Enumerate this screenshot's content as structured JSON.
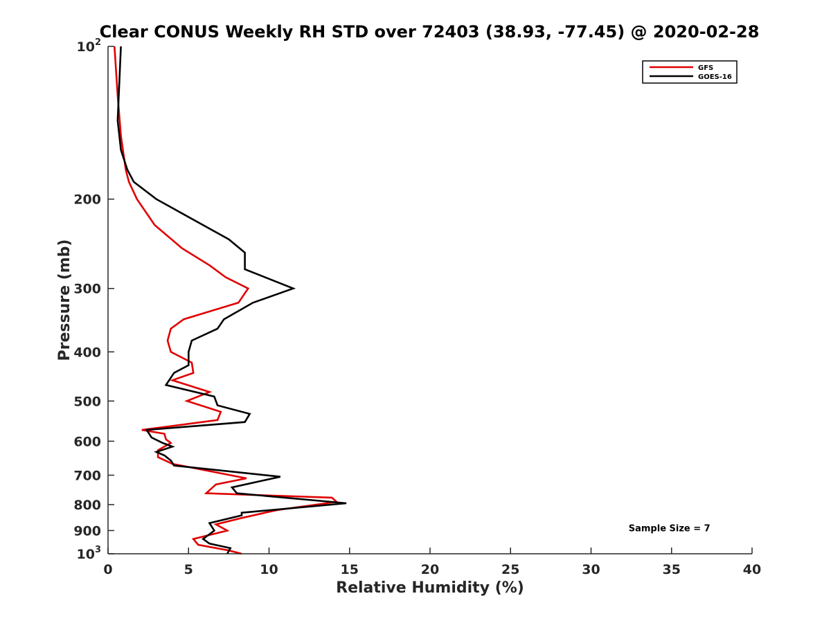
{
  "chart_data": {
    "type": "line",
    "title": "Clear CONUS Weekly RH STD over 72403 (38.93, -77.45) @ 2020-02-28",
    "xlabel": "Relative Humidity (%)",
    "ylabel": "Pressure (mb)",
    "xlim": [
      0,
      40
    ],
    "ylim": [
      100,
      1000
    ],
    "yscale": "log",
    "y_reversed": true,
    "grid": false,
    "x_ticks": [
      0,
      5,
      10,
      15,
      20,
      25,
      30,
      35,
      40
    ],
    "x_tick_labels": [
      "0",
      "5",
      "10",
      "15",
      "20",
      "25",
      "30",
      "35",
      "40"
    ],
    "y_ticks": [
      100,
      200,
      300,
      400,
      500,
      600,
      700,
      800,
      900,
      1000
    ],
    "y_tick_labels": [
      {
        "base": "10",
        "exp": "2"
      },
      {
        "base": "200",
        "exp": ""
      },
      {
        "base": "300",
        "exp": ""
      },
      {
        "base": "400",
        "exp": ""
      },
      {
        "base": "500",
        "exp": ""
      },
      {
        "base": "600",
        "exp": ""
      },
      {
        "base": "700",
        "exp": ""
      },
      {
        "base": "800",
        "exp": ""
      },
      {
        "base": "900",
        "exp": ""
      },
      {
        "base": "10",
        "exp": "3"
      }
    ],
    "legend_position": "top-right",
    "annotation": "Sample Size = 7",
    "series": [
      {
        "name": "GFS",
        "color": "#e00000",
        "points": [
          [
            0.4,
            100
          ],
          [
            0.6,
            125
          ],
          [
            0.8,
            150
          ],
          [
            1.1,
            175
          ],
          [
            1.3,
            185
          ],
          [
            1.8,
            200
          ],
          [
            2.9,
            225
          ],
          [
            4.6,
            250
          ],
          [
            6.3,
            270
          ],
          [
            7.3,
            285
          ],
          [
            8.7,
            300
          ],
          [
            8.1,
            320
          ],
          [
            4.7,
            345
          ],
          [
            3.9,
            360
          ],
          [
            3.7,
            380
          ],
          [
            3.9,
            400
          ],
          [
            5.2,
            420
          ],
          [
            5.3,
            440
          ],
          [
            4.0,
            455
          ],
          [
            6.3,
            480
          ],
          [
            4.9,
            500
          ],
          [
            7.0,
            525
          ],
          [
            6.8,
            545
          ],
          [
            2.1,
            570
          ],
          [
            3.5,
            580
          ],
          [
            3.6,
            595
          ],
          [
            3.9,
            605
          ],
          [
            3.1,
            625
          ],
          [
            3.1,
            645
          ],
          [
            4.0,
            665
          ],
          [
            8.6,
            710
          ],
          [
            6.7,
            730
          ],
          [
            6.1,
            760
          ],
          [
            13.9,
            775
          ],
          [
            14.2,
            790
          ],
          [
            10.5,
            820
          ],
          [
            8.3,
            850
          ],
          [
            6.7,
            875
          ],
          [
            7.4,
            900
          ],
          [
            5.3,
            935
          ],
          [
            5.6,
            960
          ],
          [
            7.5,
            985
          ],
          [
            8.3,
            1000
          ]
        ]
      },
      {
        "name": "GOES-16",
        "color": "#000000",
        "points": [
          [
            0.8,
            100
          ],
          [
            0.6,
            140
          ],
          [
            0.8,
            160
          ],
          [
            1.2,
            175
          ],
          [
            1.6,
            185
          ],
          [
            3.0,
            200
          ],
          [
            7.5,
            240
          ],
          [
            8.5,
            255
          ],
          [
            8.5,
            275
          ],
          [
            11.5,
            300
          ],
          [
            9.0,
            320
          ],
          [
            7.2,
            345
          ],
          [
            6.8,
            360
          ],
          [
            5.2,
            380
          ],
          [
            5.0,
            400
          ],
          [
            5.0,
            425
          ],
          [
            4.1,
            440
          ],
          [
            3.6,
            465
          ],
          [
            6.6,
            490
          ],
          [
            6.8,
            510
          ],
          [
            8.8,
            530
          ],
          [
            8.5,
            550
          ],
          [
            2.4,
            570
          ],
          [
            2.7,
            590
          ],
          [
            3.4,
            605
          ],
          [
            4.0,
            615
          ],
          [
            3.0,
            630
          ],
          [
            3.5,
            640
          ],
          [
            3.9,
            655
          ],
          [
            4.1,
            670
          ],
          [
            10.7,
            705
          ],
          [
            7.7,
            740
          ],
          [
            8.0,
            760
          ],
          [
            14.8,
            795
          ],
          [
            8.3,
            830
          ],
          [
            8.3,
            840
          ],
          [
            6.3,
            870
          ],
          [
            6.6,
            900
          ],
          [
            6.2,
            920
          ],
          [
            5.9,
            935
          ],
          [
            6.3,
            955
          ],
          [
            7.6,
            975
          ],
          [
            7.4,
            1000
          ]
        ]
      }
    ]
  }
}
